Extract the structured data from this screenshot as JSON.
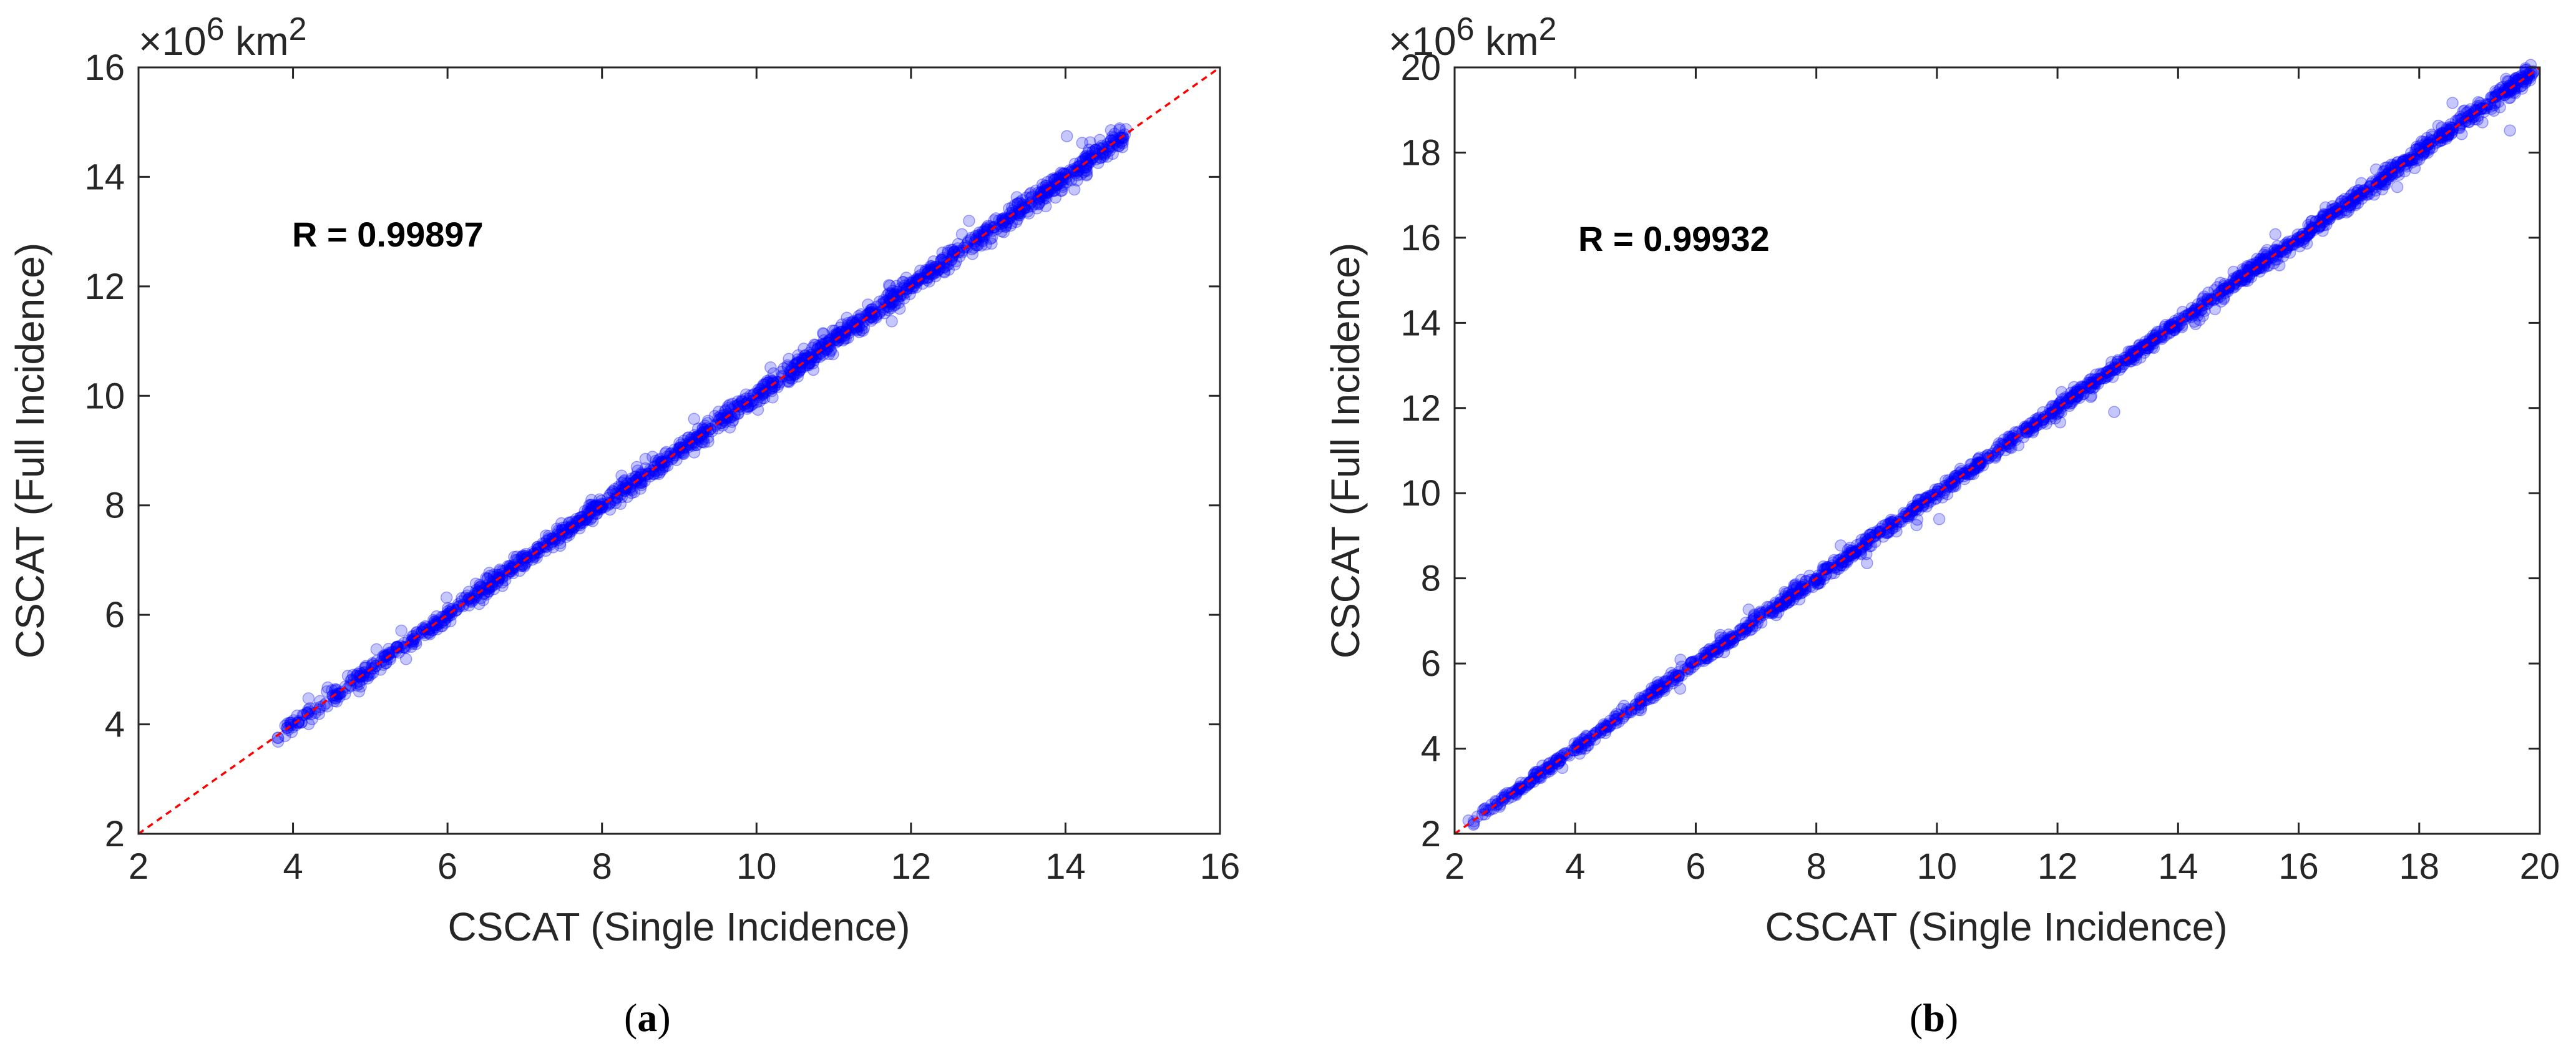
{
  "chart_data": [
    {
      "type": "scatter",
      "panel": "a",
      "caption": "(a)",
      "caption_letter": "a",
      "xlabel": "CSCAT (Single Incidence)",
      "ylabel": "CSCAT (Full Incidence)",
      "xlim": [
        2,
        16
      ],
      "ylim": [
        2,
        16
      ],
      "xticks": [
        2,
        4,
        6,
        8,
        10,
        12,
        14,
        16
      ],
      "yticks": [
        2,
        4,
        6,
        8,
        10,
        12,
        14,
        16
      ],
      "exponent_label": "×10",
      "exponent_power": "6",
      "exponent_unit": " km",
      "exponent_unit_power": "2",
      "annotation": "R = 0.99897",
      "reference_line": "1:1 (red dashed)",
      "point_color": "#0000ff",
      "line_color": "#ff0000",
      "data_range": [
        3.8,
        14.8
      ],
      "noise": 0.1,
      "n_points": 1500
    },
    {
      "type": "scatter",
      "panel": "b",
      "caption": "(b)",
      "caption_letter": "b",
      "xlabel": "CSCAT (Single Incidence)",
      "ylabel": "CSCAT (Full Incidence)",
      "xlim": [
        2,
        20
      ],
      "ylim": [
        2,
        20
      ],
      "xticks": [
        2,
        4,
        6,
        8,
        10,
        12,
        14,
        16,
        18,
        20
      ],
      "yticks": [
        2,
        4,
        6,
        8,
        10,
        12,
        14,
        16,
        18,
        20
      ],
      "exponent_label": "×10",
      "exponent_power": "6",
      "exponent_unit": " km",
      "exponent_unit_power": "2",
      "annotation": "R = 0.99932",
      "reference_line": "1:1 (red dashed)",
      "point_color": "#0000ff",
      "line_color": "#ff0000",
      "data_range": [
        2.2,
        19.9
      ],
      "noise": 0.1,
      "n_points": 1800
    }
  ]
}
